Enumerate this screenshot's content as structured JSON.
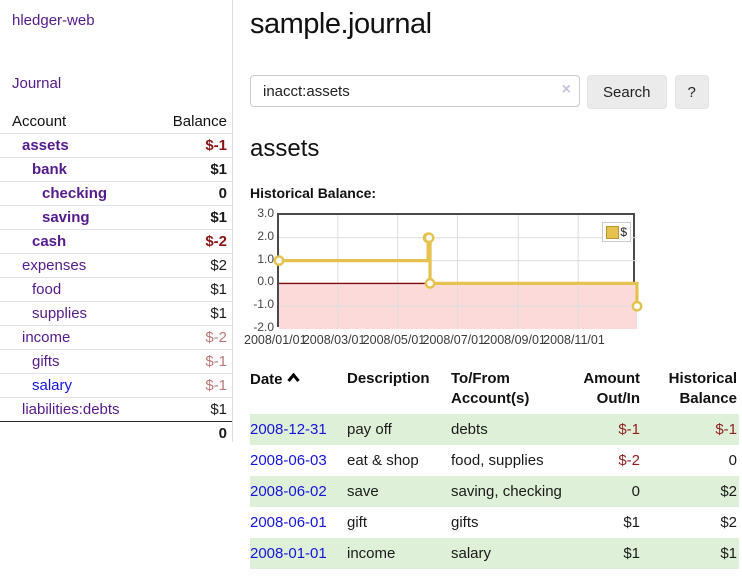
{
  "app": {
    "title": "hledger-web"
  },
  "sidebar": {
    "journal_link": "Journal",
    "table": {
      "account_header": "Account",
      "balance_header": "Balance",
      "rows": [
        {
          "name": "assets",
          "balance": "$-1",
          "level": 1,
          "bold": true,
          "name_color": "purple",
          "balance_color": "neg-strong"
        },
        {
          "name": "bank",
          "balance": "$1",
          "level": 2,
          "bold": true,
          "name_color": "purple",
          "balance_color": "black"
        },
        {
          "name": "checking",
          "balance": "0",
          "level": 3,
          "bold": true,
          "name_color": "purple",
          "balance_color": "black"
        },
        {
          "name": "saving",
          "balance": "$1",
          "level": 3,
          "bold": true,
          "name_color": "purple",
          "balance_color": "black"
        },
        {
          "name": "cash",
          "balance": "$-2",
          "level": 2,
          "bold": true,
          "name_color": "purple",
          "balance_color": "neg-strong"
        },
        {
          "name": "expenses",
          "balance": "$2",
          "level": 1,
          "bold": false,
          "name_color": "purple",
          "balance_color": "black"
        },
        {
          "name": "food",
          "balance": "$1",
          "level": 2,
          "bold": false,
          "name_color": "purple",
          "balance_color": "black"
        },
        {
          "name": "supplies",
          "balance": "$1",
          "level": 2,
          "bold": false,
          "name_color": "purple",
          "balance_color": "black"
        },
        {
          "name": "income",
          "balance": "$-2",
          "level": 1,
          "bold": false,
          "name_color": "purple",
          "balance_color": "neg-muted"
        },
        {
          "name": "gifts",
          "balance": "$-1",
          "level": 2,
          "bold": false,
          "name_color": "purple",
          "balance_color": "neg-muted"
        },
        {
          "name": "salary",
          "balance": "$-1",
          "level": 2,
          "bold": false,
          "name_color": "blue",
          "balance_color": "neg-muted"
        },
        {
          "name": "liabilities:debts",
          "balance": "$1",
          "level": 1,
          "bold": false,
          "name_color": "purple",
          "balance_color": "black"
        }
      ],
      "total": "0"
    }
  },
  "main": {
    "title": "sample.journal",
    "search": {
      "value": "inacct:assets",
      "clear_icon": "×",
      "button_label": "Search",
      "help_label": "?"
    },
    "section_title": "assets",
    "chart_label": "Historical Balance:"
  },
  "chart_data": {
    "type": "line",
    "step": "after",
    "title": "Historical Balance",
    "series": [
      {
        "name": "$",
        "color": "#e5c14e",
        "points": [
          [
            "2008-01-01",
            1
          ],
          [
            "2008-06-01",
            2
          ],
          [
            "2008-06-02",
            2
          ],
          [
            "2008-06-03",
            0
          ],
          [
            "2008-12-31",
            -1
          ]
        ]
      }
    ],
    "xrange": [
      "2008-01-01",
      "2008-12-31"
    ],
    "ylim": [
      -2,
      3
    ],
    "yticks": [
      "3.0",
      "2.0",
      "1.0",
      "0.0",
      "-1.0",
      "-2.0"
    ],
    "xticks": [
      "2008/01/01",
      "2008/03/01",
      "2008/05/01",
      "2008/07/01",
      "2008/09/01",
      "2008/11/01"
    ],
    "grid": true,
    "legend_position": "top-right",
    "legend_label": "$",
    "negative_region_color": "#fcdada",
    "zero_line_color": "#7d0e0e"
  },
  "transactions": {
    "headers": {
      "date": "Date",
      "description": "Description",
      "accounts": "To/From Account(s)",
      "amount": "Amount Out/In",
      "balance": "Historical Balance"
    },
    "rows": [
      {
        "date": "2008-12-31",
        "description": "pay off",
        "accounts": "debts",
        "amount": "$-1",
        "balance": "$-1",
        "amount_neg": true,
        "balance_neg": true,
        "highlight": true
      },
      {
        "date": "2008-06-03",
        "description": "eat & shop",
        "accounts": "food, supplies",
        "amount": "$-2",
        "balance": "0",
        "amount_neg": true,
        "balance_neg": false,
        "highlight": false
      },
      {
        "date": "2008-06-02",
        "description": "save",
        "accounts": "saving, checking",
        "amount": "0",
        "balance": "$2",
        "amount_neg": false,
        "balance_neg": false,
        "highlight": true
      },
      {
        "date": "2008-06-01",
        "description": "gift",
        "accounts": "gifts",
        "amount": "$1",
        "balance": "$2",
        "amount_neg": false,
        "balance_neg": false,
        "highlight": false
      },
      {
        "date": "2008-01-01",
        "description": "income",
        "accounts": "salary",
        "amount": "$1",
        "balance": "$1",
        "amount_neg": false,
        "balance_neg": false,
        "highlight": true
      }
    ]
  }
}
